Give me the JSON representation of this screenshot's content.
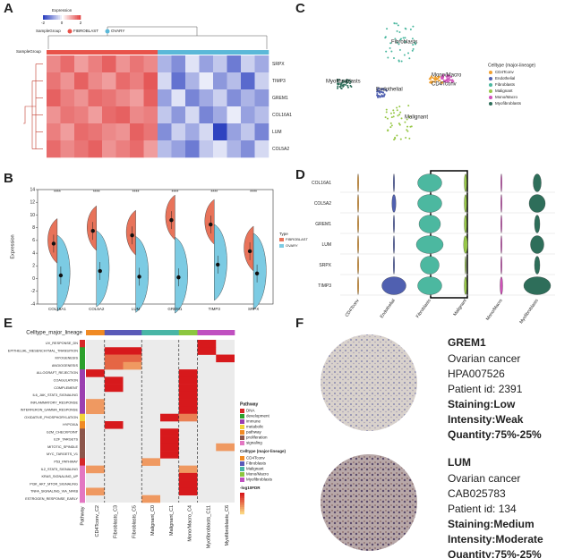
{
  "panel_labels": [
    "A",
    "B",
    "C",
    "D",
    "E",
    "F"
  ],
  "panel_a": {
    "legend_title": "Expression",
    "legend_ticks": [
      -2,
      0,
      2
    ],
    "group_title": "SampleGroup",
    "groups": [
      "FIBROBLAST",
      "OVARY"
    ],
    "group_colors": [
      "#e8534a",
      "#5bb8d8"
    ],
    "genes": [
      "SRPX",
      "TIMP3",
      "GREM1",
      "COL16A1",
      "LUM",
      "COL5A2"
    ],
    "column_groups": [
      0,
      0,
      0,
      0,
      0,
      0,
      0,
      0,
      1,
      1,
      1,
      1,
      1,
      1,
      1,
      1
    ],
    "values": [
      [
        1.2,
        1.5,
        1.0,
        1.3,
        1.6,
        1.1,
        1.4,
        1.2,
        -0.8,
        -1.2,
        -0.3,
        -1.0,
        -0.6,
        -1.4,
        -0.5,
        -0.9
      ],
      [
        1.4,
        1.1,
        1.6,
        1.2,
        1.0,
        1.5,
        1.3,
        1.7,
        -0.4,
        -1.5,
        -0.8,
        -0.2,
        -1.1,
        -0.7,
        -1.6,
        -0.5
      ],
      [
        1.6,
        1.3,
        1.1,
        1.5,
        1.4,
        1.2,
        1.0,
        1.6,
        -1.0,
        -0.3,
        -1.3,
        -0.9,
        -0.5,
        -1.2,
        -0.8,
        -1.1
      ],
      [
        1.1,
        1.4,
        1.3,
        1.0,
        1.5,
        1.6,
        1.2,
        1.3,
        -0.6,
        -1.1,
        -0.4,
        -1.3,
        -0.9,
        -0.2,
        -1.0,
        -0.7
      ],
      [
        1.3,
        1.0,
        1.5,
        1.4,
        1.2,
        1.1,
        1.6,
        1.4,
        -1.2,
        -0.5,
        -0.9,
        -0.4,
        -3.0,
        -1.0,
        -0.6,
        -1.3
      ],
      [
        1.5,
        1.2,
        1.4,
        1.6,
        1.1,
        1.3,
        1.5,
        1.0,
        -0.7,
        -1.0,
        -1.4,
        -0.6,
        -0.3,
        -0.8,
        -1.2,
        -0.4
      ]
    ]
  },
  "panel_b": {
    "type": "split-violin",
    "ylabel": "Expression",
    "legend_title": "Type",
    "categories": [
      "COL16A1",
      "COL5A2",
      "LUM",
      "GREM1",
      "TIMP3",
      "SRPX"
    ],
    "significance": [
      "****",
      "****",
      "****",
      "****",
      "****",
      "****"
    ],
    "series": [
      {
        "name": "FIBROBLAST",
        "color": "#e8735a",
        "values": [
          5.5,
          7.5,
          6.8,
          9.2,
          8.5,
          4.3
        ]
      },
      {
        "name": "OVARY",
        "color": "#7ccbe3",
        "values": [
          0.5,
          1.2,
          0.3,
          0.2,
          2.2,
          0.8
        ]
      }
    ],
    "ylim": [
      -4,
      14
    ],
    "yticks": [
      -4,
      -2,
      0,
      2,
      4,
      6,
      8,
      10,
      12,
      14
    ]
  },
  "panel_c": {
    "legend_title": "Celltype (major-lineage)",
    "celltypes": [
      "CD4Tconv",
      "Endothelial",
      "Fibroblasts",
      "Malignant",
      "Mono/Macro",
      "Myofibroblasts"
    ],
    "colors": [
      "#f0a030",
      "#5060b0",
      "#4cb8a0",
      "#98c848",
      "#d050b8",
      "#2e6e5a"
    ]
  },
  "panel_d": {
    "genes": [
      "COL16A1",
      "COL5A2",
      "GREM1",
      "LUM",
      "SRPX",
      "TIMP3"
    ],
    "violin_width": [
      [
        0.05,
        0.05,
        0.9,
        0.1,
        0.05,
        0.3
      ],
      [
        0.05,
        0.15,
        0.9,
        0.1,
        0.05,
        0.6
      ],
      [
        0.05,
        0.05,
        0.8,
        0.1,
        0.05,
        0.2
      ],
      [
        0.05,
        0.05,
        1.0,
        0.15,
        0.05,
        0.5
      ],
      [
        0.05,
        0.05,
        0.7,
        0.05,
        0.05,
        0.2
      ],
      [
        0.05,
        0.9,
        0.9,
        0.1,
        0.1,
        1.0
      ]
    ]
  },
  "panel_e": {
    "header": "Celltype_major_lineage",
    "row_title": "Pathway",
    "pathway_legend_title": "Pathway",
    "pathway_types": [
      "DNA",
      "development",
      "immune",
      "metabolic",
      "pathway",
      "proliferation",
      "signaling"
    ],
    "pathway_colors": [
      "#d62728",
      "#2ca02c",
      "#9b3fb0",
      "#f2d43a",
      "#f08a24",
      "#8c564b",
      "#e377c2"
    ],
    "celltype_legend_title": "Celltype (major-lineage)",
    "celltypes": [
      "CD4Tconv",
      "Fibroblasts",
      "Malignant",
      "Mono/Macro",
      "Myofibroblasts"
    ],
    "celltype_colors": [
      "#f08a24",
      "#5a5ab8",
      "#49b6a6",
      "#8cc63f",
      "#c050c0"
    ],
    "scale_title": "-log10FDR",
    "color_range": [
      0,
      8
    ],
    "pathways": [
      "UV_RESPONSE_DN",
      "EPITHELIAL_MESENCHYMAL_TRANSITION",
      "MYOGENESIS",
      "ANGIOGENESIS",
      "ALLOGRAFT_REJECTION",
      "COAGULATION",
      "COMPLEMENT",
      "IL6_JAK_STAT3_SIGNALING",
      "INFLAMMATORY_RESPONSE",
      "INTERFERON_GAMMA_RESPONSE",
      "OXIDATIVE_PHOSPHORYLATION",
      "HYPOXIA",
      "G2M_CHECKPOINT",
      "E2F_TARGETS",
      "MITOTIC_SPINDLE",
      "MYC_TARGETS_V1",
      "P53_PATHWAY",
      "IL2_STAT5_SIGNALING",
      "KRAS_SIGNALING_UP",
      "PI3K_AKT_MTOR_SIGNALING",
      "TNFA_SIGNALING_VIA_NFKB",
      "ESTROGEN_RESPONSE_EARLY"
    ],
    "pathway_type_index": [
      0,
      1,
      1,
      1,
      2,
      2,
      2,
      2,
      2,
      2,
      3,
      4,
      5,
      5,
      5,
      5,
      0,
      6,
      6,
      6,
      6,
      6
    ],
    "columns": [
      "CD4Tconv_C2",
      "Fibroblasts_C3",
      "Fibroblasts_C5",
      "Malignant_C0",
      "Malignant_C1",
      "Mono/Macro_C4",
      "Myofibroblasts_C11",
      "Myofibroblasts_C6"
    ],
    "column_celltype_index": [
      0,
      1,
      1,
      2,
      2,
      3,
      4,
      4
    ],
    "values": [
      [
        null,
        null,
        null,
        null,
        null,
        null,
        8,
        null
      ],
      [
        null,
        8,
        8,
        null,
        null,
        null,
        8,
        null
      ],
      [
        null,
        5,
        5,
        null,
        null,
        null,
        null,
        8
      ],
      [
        null,
        5,
        3,
        null,
        null,
        null,
        null,
        null
      ],
      [
        8,
        null,
        null,
        null,
        null,
        8,
        null,
        null
      ],
      [
        null,
        8,
        null,
        null,
        null,
        8,
        null,
        null
      ],
      [
        null,
        8,
        null,
        null,
        null,
        8,
        null,
        null
      ],
      [
        null,
        null,
        null,
        null,
        null,
        8,
        null,
        null
      ],
      [
        3,
        null,
        null,
        null,
        null,
        8,
        null,
        null
      ],
      [
        3,
        null,
        null,
        null,
        null,
        8,
        null,
        null
      ],
      [
        null,
        null,
        null,
        null,
        8,
        4,
        null,
        null
      ],
      [
        null,
        8,
        null,
        null,
        null,
        null,
        null,
        null
      ],
      [
        null,
        null,
        null,
        null,
        8,
        null,
        null,
        null
      ],
      [
        null,
        null,
        null,
        null,
        8,
        null,
        null,
        null
      ],
      [
        null,
        null,
        null,
        null,
        8,
        null,
        null,
        3
      ],
      [
        null,
        null,
        null,
        null,
        8,
        null,
        null,
        null
      ],
      [
        null,
        null,
        null,
        3,
        null,
        null,
        null,
        null
      ],
      [
        3,
        null,
        null,
        null,
        null,
        3,
        null,
        null
      ],
      [
        null,
        null,
        null,
        null,
        null,
        8,
        null,
        null
      ],
      [
        null,
        null,
        null,
        null,
        null,
        8,
        null,
        null
      ],
      [
        3,
        null,
        null,
        null,
        null,
        8,
        null,
        null
      ],
      [
        null,
        null,
        null,
        3,
        null,
        null,
        null,
        null
      ]
    ]
  },
  "panel_f": [
    {
      "lines": [
        "GREM1",
        "Ovarian cancer",
        "HPA007526",
        "Patient id: 2391",
        "Staining:Low",
        "Intensity:Weak",
        "Quantity:75%-25%"
      ]
    },
    {
      "lines": [
        "LUM",
        "Ovarian cancer",
        "CAB025783",
        "Patient id: 134",
        "Staining:Medium",
        "Intensity:Moderate",
        "Quantity:75%-25%"
      ]
    }
  ]
}
